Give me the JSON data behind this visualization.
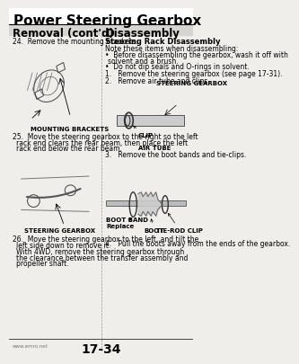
{
  "bg_color": "#f0eeeb",
  "title": "Power Steering Gearbox",
  "title_fontsize": 11,
  "title_bold": true,
  "left_section_title": "Removal (cont'd)",
  "right_section_title": "Disassembly",
  "section_title_fontsize": 8.5,
  "left_items": [
    "24.  Remove the mounting brackets.",
    "",
    "",
    "",
    "",
    "",
    "",
    "",
    "",
    "MOUNTING BRACKETS",
    "",
    "25.  Move the steering gearbox to the right so the left\n      rack end clears the rear beam, then place the left\n      rack end below the rear beam.",
    "",
    "",
    "",
    "",
    "",
    "",
    "",
    "",
    "STEERING GEARBOX",
    "",
    "26.  Move the steering gearbox to the left, and tilt the\n      left side down to remove it.\n      With 4WD, remove the steering gearbox through\n      the clearance between the transfer assembly and\n      propeller shaft."
  ],
  "right_items": [
    "Steering Rack Disassembly",
    "",
    "Note these items when disassembling:",
    "•  Before disassembling the gearbox, wash it off with\n   solvent and a brush.",
    "•  Do not dip seals and O-rings in solvent.",
    "",
    "1.   Remove the steering gearbox (see page 17-31).",
    "",
    "2.   Remove air tube and clips.",
    "",
    "STEERING GEARBOX",
    "",
    "",
    "",
    "",
    "",
    "CLIP",
    "",
    "AIR TUBE",
    "",
    "3.   Remove the boot bands and tie-clips.",
    "",
    "",
    "",
    "",
    "",
    "",
    "BOOT BAND\nReplace",
    "BOOT",
    "TIE-ROD CLIP",
    "",
    "4.   Pull the boots away from the ends of the gearbox."
  ],
  "footer": "17-34",
  "body_fontsize": 5.5,
  "small_fontsize": 5.0,
  "label_fontsize": 5.0
}
